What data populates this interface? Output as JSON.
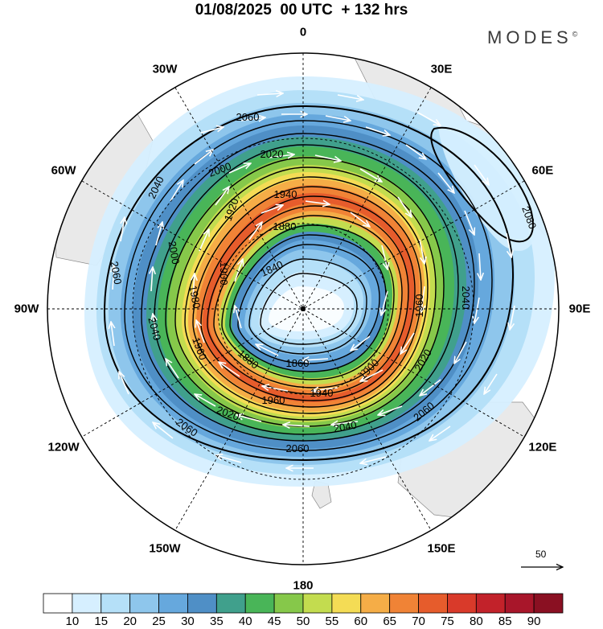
{
  "header": {
    "title": "01/08/2025  00 UTC  + 132 hrs",
    "brand": "MODES",
    "brand_mark": "©"
  },
  "longitudes": [
    {
      "label": "0",
      "lon": 0
    },
    {
      "label": "30E",
      "lon": 30
    },
    {
      "label": "60E",
      "lon": 60
    },
    {
      "label": "90E",
      "lon": 90
    },
    {
      "label": "120E",
      "lon": 120
    },
    {
      "label": "150E",
      "lon": 150
    },
    {
      "label": "180",
      "lon": 180
    },
    {
      "label": "150W",
      "lon": -150
    },
    {
      "label": "120W",
      "lon": -120
    },
    {
      "label": "90W",
      "lon": -90
    },
    {
      "label": "60W",
      "lon": -60
    },
    {
      "label": "30W",
      "lon": -30
    }
  ],
  "contours": [
    {
      "label": "2080",
      "value": 2080
    },
    {
      "label": "2060",
      "value": 2060
    },
    {
      "label": "2040",
      "value": 2040
    },
    {
      "label": "2020",
      "value": 2020
    },
    {
      "label": "2000",
      "value": 2000
    },
    {
      "label": "1980",
      "value": 1980
    },
    {
      "label": "1960",
      "value": 1960
    },
    {
      "label": "1940",
      "value": 1940
    },
    {
      "label": "1920",
      "value": 1920
    },
    {
      "label": "1900",
      "value": 1900
    },
    {
      "label": "1880",
      "value": 1880
    },
    {
      "label": "1860",
      "value": 1860
    },
    {
      "label": "1840",
      "value": 1840
    }
  ],
  "reference_vector": {
    "label": "50"
  },
  "colorbar": {
    "labels": [
      "10",
      "15",
      "20",
      "25",
      "30",
      "35",
      "40",
      "45",
      "50",
      "55",
      "60",
      "65",
      "70",
      "75",
      "80",
      "85",
      "90"
    ],
    "colors": [
      "#ffffff",
      "#d6efff",
      "#b5e0f8",
      "#8ec6ec",
      "#66a8dd",
      "#4f8fc6",
      "#40a08c",
      "#49b558",
      "#86c84a",
      "#c3dc4f",
      "#f4dc55",
      "#f5ad47",
      "#f08336",
      "#e65c2c",
      "#d93a2a",
      "#c2222a",
      "#a8162a",
      "#8a1022"
    ]
  }
}
